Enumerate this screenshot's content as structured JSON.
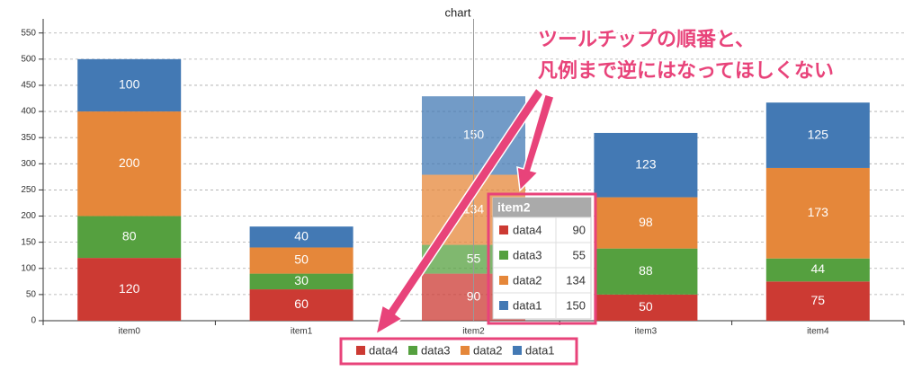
{
  "chart_data": {
    "type": "stacked-bar",
    "title": "chart",
    "categories": [
      "item0",
      "item1",
      "item2",
      "item3",
      "item4"
    ],
    "series": [
      {
        "name": "data4",
        "color": "#cc3a33",
        "values": [
          120,
          60,
          90,
          50,
          75
        ]
      },
      {
        "name": "data3",
        "color": "#55a03f",
        "values": [
          80,
          30,
          55,
          88,
          44
        ]
      },
      {
        "name": "data2",
        "color": "#e5873a",
        "values": [
          200,
          50,
          134,
          98,
          173
        ]
      },
      {
        "name": "data1",
        "color": "#4379b4",
        "values": [
          100,
          40,
          150,
          123,
          125
        ]
      }
    ],
    "ylim": [
      0,
      577
    ],
    "yticks": [
      0,
      50,
      100,
      150,
      200,
      250,
      300,
      350,
      400,
      450,
      500,
      550
    ],
    "grid": true,
    "tooltip": {
      "title": "item2"
    },
    "annotations": [
      "ツールチップの順番と、",
      "凡例まで逆にはなってほしくない"
    ]
  }
}
